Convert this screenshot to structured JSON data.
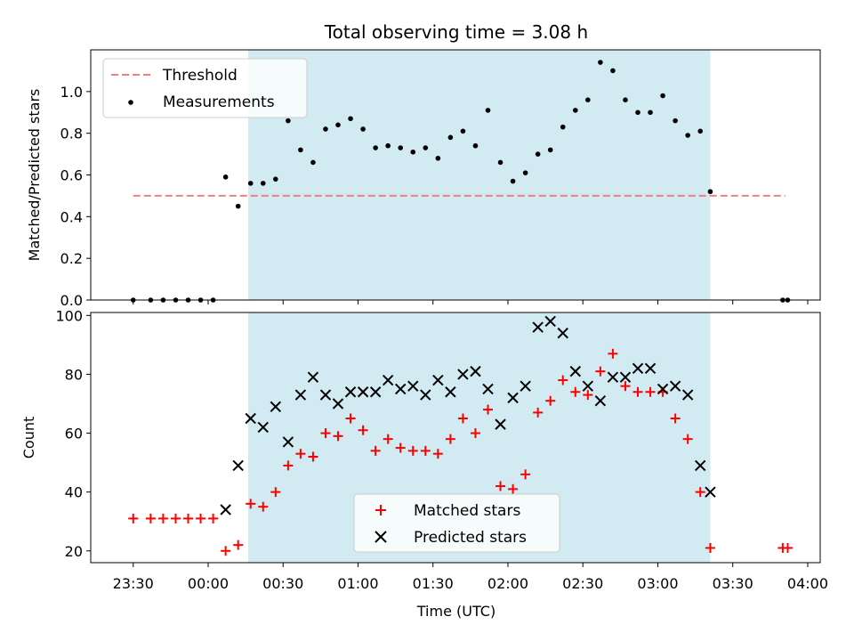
{
  "title": "Total observing time = 3.08 h",
  "colors": {
    "shade": "#add8e6",
    "threshold": "#f08080",
    "measurement": "#000000",
    "matched": "#ff0000",
    "predicted": "#000000"
  },
  "chart_data": [
    {
      "type": "scatter",
      "title": "Total observing time = 3.08 h",
      "ylabel": "Matched/Predicted stars",
      "xlabel": "",
      "xlim": [
        "23:13",
        "04:05"
      ],
      "ylim": [
        0,
        1.2
      ],
      "y_ticks": [
        "0.0",
        "0.2",
        "0.4",
        "0.6",
        "0.8",
        "1.0"
      ],
      "x_tick_labels_shown": false,
      "legend": {
        "placement": "top-left",
        "entries": [
          "Threshold",
          "Measurements"
        ]
      },
      "shaded_interval": [
        "00:16",
        "03:21"
      ],
      "threshold": {
        "name": "Threshold",
        "y": 0.5,
        "x_range": [
          "23:30",
          "03:51"
        ],
        "style": "dashed"
      },
      "series": [
        {
          "name": "Measurements",
          "points": [
            [
              "23:30",
              0.0
            ],
            [
              "23:37",
              0.0
            ],
            [
              "23:42",
              0.0
            ],
            [
              "23:47",
              0.0
            ],
            [
              "23:52",
              0.0
            ],
            [
              "23:57",
              0.0
            ],
            [
              "00:02",
              0.0
            ],
            [
              "00:07",
              0.59
            ],
            [
              "00:12",
              0.45
            ],
            [
              "00:17",
              0.56
            ],
            [
              "00:22",
              0.56
            ],
            [
              "00:27",
              0.58
            ],
            [
              "00:32",
              0.86
            ],
            [
              "00:37",
              0.72
            ],
            [
              "00:42",
              0.66
            ],
            [
              "00:47",
              0.82
            ],
            [
              "00:52",
              0.84
            ],
            [
              "00:57",
              0.87
            ],
            [
              "01:02",
              0.82
            ],
            [
              "01:07",
              0.73
            ],
            [
              "01:12",
              0.74
            ],
            [
              "01:17",
              0.73
            ],
            [
              "01:22",
              0.71
            ],
            [
              "01:27",
              0.73
            ],
            [
              "01:32",
              0.68
            ],
            [
              "01:37",
              0.78
            ],
            [
              "01:42",
              0.81
            ],
            [
              "01:47",
              0.74
            ],
            [
              "01:52",
              0.91
            ],
            [
              "01:57",
              0.66
            ],
            [
              "02:02",
              0.57
            ],
            [
              "02:07",
              0.61
            ],
            [
              "02:12",
              0.7
            ],
            [
              "02:17",
              0.72
            ],
            [
              "02:22",
              0.83
            ],
            [
              "02:27",
              0.91
            ],
            [
              "02:32",
              0.96
            ],
            [
              "02:37",
              1.14
            ],
            [
              "02:42",
              1.1
            ],
            [
              "02:47",
              0.96
            ],
            [
              "02:52",
              0.9
            ],
            [
              "02:57",
              0.9
            ],
            [
              "03:02",
              0.98
            ],
            [
              "03:07",
              0.86
            ],
            [
              "03:12",
              0.79
            ],
            [
              "03:17",
              0.81
            ],
            [
              "03:21",
              0.52
            ],
            [
              "03:50",
              0.0
            ],
            [
              "03:52",
              0.0
            ]
          ]
        }
      ]
    },
    {
      "type": "scatter",
      "title": "",
      "xlabel": "Time (UTC)",
      "ylabel": "Count",
      "xlim": [
        "23:13",
        "04:05"
      ],
      "ylim": [
        16,
        101
      ],
      "y_ticks": [
        "20",
        "40",
        "60",
        "80",
        "100"
      ],
      "x_ticks": [
        "23:30",
        "00:00",
        "00:30",
        "01:00",
        "01:30",
        "02:00",
        "02:30",
        "03:00",
        "03:30",
        "04:00"
      ],
      "legend": {
        "placement": "bottom-center",
        "entries": [
          "Matched stars",
          "Predicted stars"
        ]
      },
      "shaded_interval": [
        "00:16",
        "03:21"
      ],
      "series": [
        {
          "name": "Matched stars",
          "marker": "plus",
          "points": [
            [
              "23:30",
              31
            ],
            [
              "23:37",
              31
            ],
            [
              "23:42",
              31
            ],
            [
              "23:47",
              31
            ],
            [
              "23:52",
              31
            ],
            [
              "23:57",
              31
            ],
            [
              "00:02",
              31
            ],
            [
              "00:07",
              20
            ],
            [
              "00:12",
              22
            ],
            [
              "00:17",
              36
            ],
            [
              "00:22",
              35
            ],
            [
              "00:27",
              40
            ],
            [
              "00:32",
              49
            ],
            [
              "00:37",
              53
            ],
            [
              "00:42",
              52
            ],
            [
              "00:47",
              60
            ],
            [
              "00:52",
              59
            ],
            [
              "00:57",
              65
            ],
            [
              "01:02",
              61
            ],
            [
              "01:07",
              54
            ],
            [
              "01:12",
              58
            ],
            [
              "01:17",
              55
            ],
            [
              "01:22",
              54
            ],
            [
              "01:27",
              54
            ],
            [
              "01:32",
              53
            ],
            [
              "01:37",
              58
            ],
            [
              "01:42",
              65
            ],
            [
              "01:47",
              60
            ],
            [
              "01:52",
              68
            ],
            [
              "01:57",
              42
            ],
            [
              "02:02",
              41
            ],
            [
              "02:07",
              46
            ],
            [
              "02:12",
              67
            ],
            [
              "02:17",
              71
            ],
            [
              "02:22",
              78
            ],
            [
              "02:27",
              74
            ],
            [
              "02:32",
              73
            ],
            [
              "02:37",
              81
            ],
            [
              "02:42",
              87
            ],
            [
              "02:47",
              76
            ],
            [
              "02:52",
              74
            ],
            [
              "02:57",
              74
            ],
            [
              "03:02",
              74
            ],
            [
              "03:07",
              65
            ],
            [
              "03:12",
              58
            ],
            [
              "03:17",
              40
            ],
            [
              "03:21",
              21
            ],
            [
              "03:50",
              21
            ],
            [
              "03:52",
              21
            ]
          ]
        },
        {
          "name": "Predicted stars",
          "marker": "x",
          "points": [
            [
              "00:07",
              34
            ],
            [
              "00:12",
              49
            ],
            [
              "00:17",
              65
            ],
            [
              "00:22",
              62
            ],
            [
              "00:27",
              69
            ],
            [
              "00:32",
              57
            ],
            [
              "00:37",
              73
            ],
            [
              "00:42",
              79
            ],
            [
              "00:47",
              73
            ],
            [
              "00:52",
              70
            ],
            [
              "00:57",
              74
            ],
            [
              "01:02",
              74
            ],
            [
              "01:07",
              74
            ],
            [
              "01:12",
              78
            ],
            [
              "01:17",
              75
            ],
            [
              "01:22",
              76
            ],
            [
              "01:27",
              73
            ],
            [
              "01:32",
              78
            ],
            [
              "01:37",
              74
            ],
            [
              "01:42",
              80
            ],
            [
              "01:47",
              81
            ],
            [
              "01:52",
              75
            ],
            [
              "01:57",
              63
            ],
            [
              "02:02",
              72
            ],
            [
              "02:07",
              76
            ],
            [
              "02:12",
              96
            ],
            [
              "02:17",
              98
            ],
            [
              "02:22",
              94
            ],
            [
              "02:27",
              81
            ],
            [
              "02:32",
              76
            ],
            [
              "02:37",
              71
            ],
            [
              "02:42",
              79
            ],
            [
              "02:47",
              79
            ],
            [
              "02:52",
              82
            ],
            [
              "02:57",
              82
            ],
            [
              "03:02",
              75
            ],
            [
              "03:07",
              76
            ],
            [
              "03:12",
              73
            ],
            [
              "03:17",
              49
            ],
            [
              "03:21",
              40
            ]
          ]
        }
      ]
    }
  ]
}
